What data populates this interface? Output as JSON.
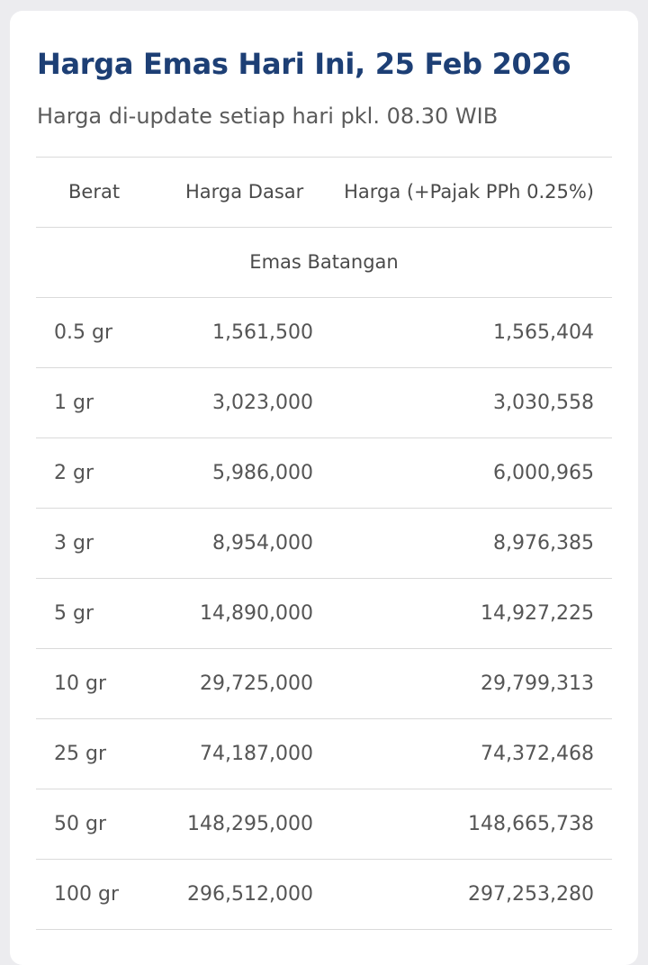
{
  "header": {
    "title": "Harga Emas Hari Ini, 25 Feb 2026",
    "subtitle": "Harga di-update setiap hari pkl. 08.30 WIB"
  },
  "table": {
    "columns": [
      "Berat",
      "Harga Dasar",
      "Harga (+Pajak PPh 0.25%)"
    ],
    "section_label": "Emas Batangan",
    "rows": [
      {
        "weight": "0.5 gr",
        "base": "1,561,500",
        "with_tax": "1,565,404"
      },
      {
        "weight": "1 gr",
        "base": "3,023,000",
        "with_tax": "3,030,558"
      },
      {
        "weight": "2 gr",
        "base": "5,986,000",
        "with_tax": "6,000,965"
      },
      {
        "weight": "3 gr",
        "base": "8,954,000",
        "with_tax": "8,976,385"
      },
      {
        "weight": "5 gr",
        "base": "14,890,000",
        "with_tax": "14,927,225"
      },
      {
        "weight": "10 gr",
        "base": "29,725,000",
        "with_tax": "29,799,313"
      },
      {
        "weight": "25 gr",
        "base": "74,187,000",
        "with_tax": "74,372,468"
      },
      {
        "weight": "50 gr",
        "base": "148,295,000",
        "with_tax": "148,665,738"
      },
      {
        "weight": "100 gr",
        "base": "296,512,000",
        "with_tax": "297,253,280"
      }
    ]
  }
}
